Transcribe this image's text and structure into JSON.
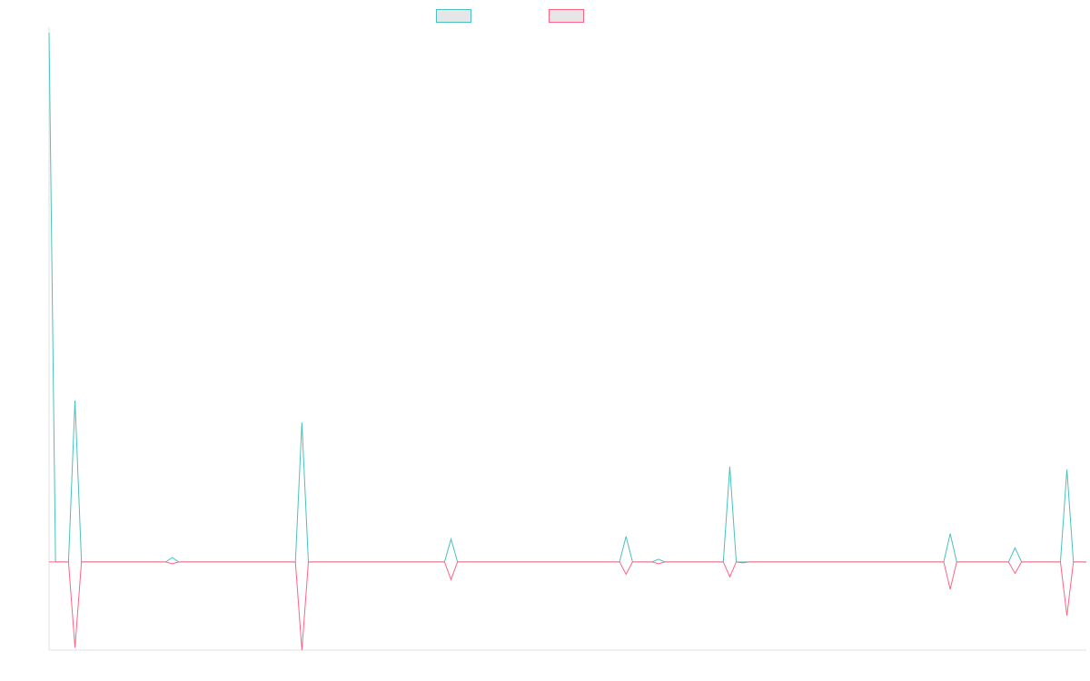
{
  "chart_data": {
    "type": "line",
    "title": "",
    "xlabel": "",
    "ylabel": "",
    "x": [
      0,
      1,
      2,
      3,
      4,
      5,
      6,
      7,
      8,
      9,
      10,
      11,
      12,
      13,
      14,
      15,
      16,
      17,
      18,
      19,
      20,
      21,
      22,
      23,
      24,
      25,
      26,
      27,
      28,
      29,
      30,
      31,
      32,
      33,
      34,
      35,
      36,
      37,
      38,
      39,
      40,
      41,
      42,
      43,
      44,
      45,
      46,
      47,
      48,
      49,
      50,
      51,
      52,
      53,
      54,
      55,
      56,
      57,
      58,
      59,
      60,
      61,
      62,
      63,
      64,
      65,
      66,
      67,
      68,
      69,
      70,
      71,
      72,
      73,
      74,
      75,
      76,
      77,
      78,
      79,
      80,
      81,
      82,
      83,
      84,
      85,
      86,
      87,
      88,
      89,
      90,
      91,
      92,
      93,
      94,
      95,
      96,
      97,
      98,
      99,
      100,
      101,
      102,
      103,
      104,
      105,
      106,
      107,
      108,
      109,
      110,
      111,
      112,
      113,
      114,
      115,
      116,
      117,
      118,
      119,
      120,
      121,
      122,
      123,
      124,
      125,
      126,
      127,
      128,
      129,
      130,
      131,
      132,
      133,
      134,
      135,
      136,
      137,
      138,
      139,
      140,
      141,
      142,
      143,
      144,
      145,
      146,
      147,
      148,
      149,
      150,
      151,
      152,
      153,
      154,
      155,
      156,
      157,
      158,
      159,
      160
    ],
    "series": [
      {
        "name": "",
        "color": "#4bc0c0",
        "values": [
          600,
          0,
          0,
          0,
          183,
          0,
          0,
          0,
          0,
          0,
          0,
          0,
          0,
          0,
          0,
          0,
          0,
          0,
          0,
          5,
          0,
          0,
          0,
          0,
          0,
          0,
          0,
          0,
          0,
          0,
          0,
          0,
          0,
          0,
          0,
          0,
          0,
          0,
          0,
          158,
          0,
          0,
          0,
          0,
          0,
          0,
          0,
          0,
          0,
          0,
          0,
          0,
          0,
          0,
          0,
          0,
          0,
          0,
          0,
          0,
          0,
          0,
          26,
          0,
          0,
          0,
          0,
          0,
          0,
          0,
          0,
          0,
          0,
          0,
          0,
          0,
          0,
          0,
          0,
          0,
          0,
          0,
          0,
          0,
          0,
          0,
          0,
          0,
          0,
          29,
          0,
          0,
          0,
          0,
          3,
          0,
          0,
          0,
          0,
          0,
          0,
          0,
          0,
          0,
          0,
          108,
          0,
          0,
          0,
          0,
          0,
          0,
          0,
          0,
          0,
          0,
          0,
          0,
          0,
          0,
          0,
          0,
          0,
          0,
          0,
          0,
          0,
          0,
          0,
          0,
          0,
          0,
          0,
          0,
          0,
          0,
          0,
          0,
          0,
          32,
          0,
          0,
          0,
          0,
          0,
          0,
          0,
          0,
          0,
          16,
          0,
          0,
          0,
          0,
          0,
          0,
          0,
          105,
          0,
          0,
          0
        ]
      },
      {
        "name": "",
        "color": "#ff6384",
        "values": [
          0,
          0,
          0,
          0,
          -97,
          0,
          0,
          0,
          0,
          0,
          0,
          0,
          0,
          0,
          0,
          0,
          0,
          0,
          0,
          -2,
          0,
          0,
          0,
          0,
          0,
          0,
          0,
          0,
          0,
          0,
          0,
          0,
          0,
          0,
          0,
          0,
          0,
          0,
          0,
          -100,
          0,
          0,
          0,
          0,
          0,
          0,
          0,
          0,
          0,
          0,
          0,
          0,
          0,
          0,
          0,
          0,
          0,
          0,
          0,
          0,
          0,
          0,
          -20,
          0,
          0,
          0,
          0,
          0,
          0,
          0,
          0,
          0,
          0,
          0,
          0,
          0,
          0,
          0,
          0,
          0,
          0,
          0,
          0,
          0,
          0,
          0,
          0,
          0,
          0,
          -14,
          0,
          0,
          0,
          0,
          -2,
          0,
          0,
          0,
          0,
          0,
          0,
          0,
          0,
          0,
          0,
          -17,
          0,
          -1,
          0,
          0,
          0,
          0,
          0,
          0,
          0,
          0,
          0,
          0,
          0,
          0,
          0,
          0,
          0,
          0,
          0,
          0,
          0,
          0,
          0,
          0,
          0,
          0,
          0,
          0,
          0,
          0,
          0,
          0,
          0,
          -31,
          0,
          0,
          0,
          0,
          0,
          0,
          0,
          0,
          0,
          -13,
          0,
          0,
          0,
          0,
          0,
          0,
          0,
          -61,
          0,
          0,
          0
        ]
      }
    ],
    "ylim": [
      -100,
      600
    ],
    "xlim": [
      0,
      160
    ],
    "grid": false,
    "legend": "top-center"
  }
}
